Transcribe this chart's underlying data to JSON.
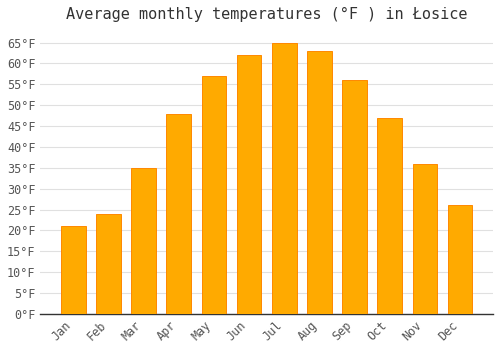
{
  "title": "Average monthly temperatures (°F ) in Łosice",
  "months": [
    "Jan",
    "Feb",
    "Mar",
    "Apr",
    "May",
    "Jun",
    "Jul",
    "Aug",
    "Sep",
    "Oct",
    "Nov",
    "Dec"
  ],
  "values": [
    21,
    24,
    35,
    48,
    57,
    62,
    65,
    63,
    56,
    47,
    36,
    26
  ],
  "bar_color": "#FFAA00",
  "bar_edge_color": "#FF8800",
  "background_color": "#FFFFFF",
  "grid_color": "#E0E0E0",
  "text_color": "#555555",
  "ylim": [
    0,
    68
  ],
  "yticks": [
    0,
    5,
    10,
    15,
    20,
    25,
    30,
    35,
    40,
    45,
    50,
    55,
    60,
    65
  ],
  "ylabel_suffix": "°F",
  "title_fontsize": 11,
  "tick_fontsize": 8.5
}
